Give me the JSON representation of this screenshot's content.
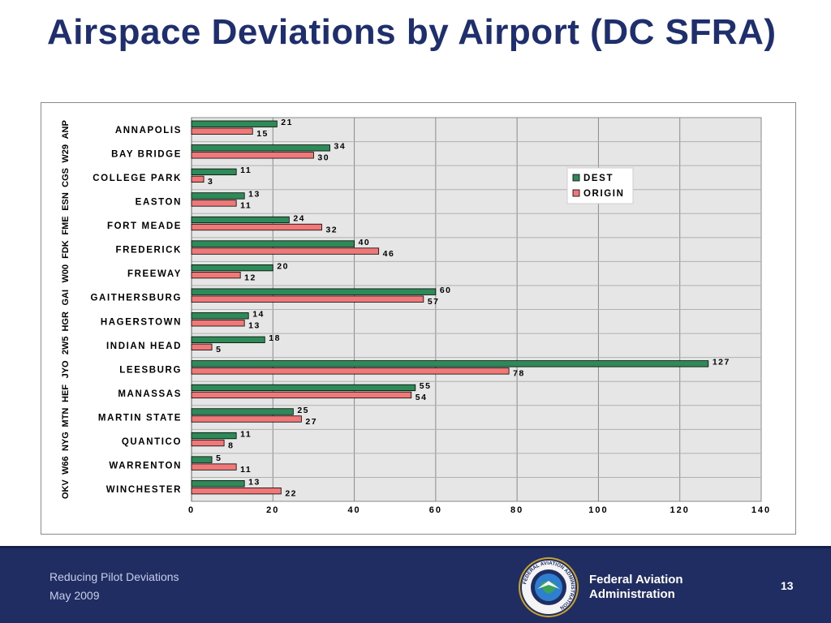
{
  "slide": {
    "title": "Airspace Deviations by Airport (DC SFRA)"
  },
  "footer": {
    "presentation": "Reducing Pilot Deviations",
    "date": "May 2009",
    "agency_line1": "Federal Aviation",
    "agency_line2": "Administration",
    "page_number": "13",
    "seal_text": "FEDERAL AVIATION ADMINISTRATION"
  },
  "chart_data": {
    "type": "bar",
    "orientation": "horizontal",
    "categories": [
      "ANNAPOLIS",
      "BAY BRIDGE",
      "COLLEGE PARK",
      "EASTON",
      "FORT MEADE",
      "FREDERICK",
      "FREEWAY",
      "GAITHERSBURG",
      "HAGERSTOWN",
      "INDIAN HEAD",
      "LEESBURG",
      "MANASSAS",
      "MARTIN STATE",
      "QUANTICO",
      "WARRENTON",
      "WINCHESTER"
    ],
    "codes": [
      "ANP",
      "W29",
      "CGS",
      "ESN",
      "FME",
      "FDK",
      "W00",
      "GAI",
      "HGR",
      "2W5",
      "JYO",
      "HEF",
      "MTN",
      "NYG",
      "W66",
      "OKV"
    ],
    "series": [
      {
        "name": "DEST",
        "color": "#2e8b57",
        "values": [
          21,
          34,
          11,
          13,
          24,
          40,
          20,
          60,
          14,
          18,
          127,
          55,
          25,
          11,
          5,
          13
        ]
      },
      {
        "name": "ORIGIN",
        "color": "#f07878",
        "values": [
          15,
          30,
          3,
          11,
          32,
          46,
          12,
          57,
          13,
          5,
          78,
          54,
          27,
          8,
          11,
          22
        ]
      }
    ],
    "xlim": [
      0,
      140
    ],
    "xticks": [
      0,
      20,
      40,
      60,
      80,
      100,
      120,
      140
    ],
    "legend_position": "top-right",
    "grid": true
  }
}
